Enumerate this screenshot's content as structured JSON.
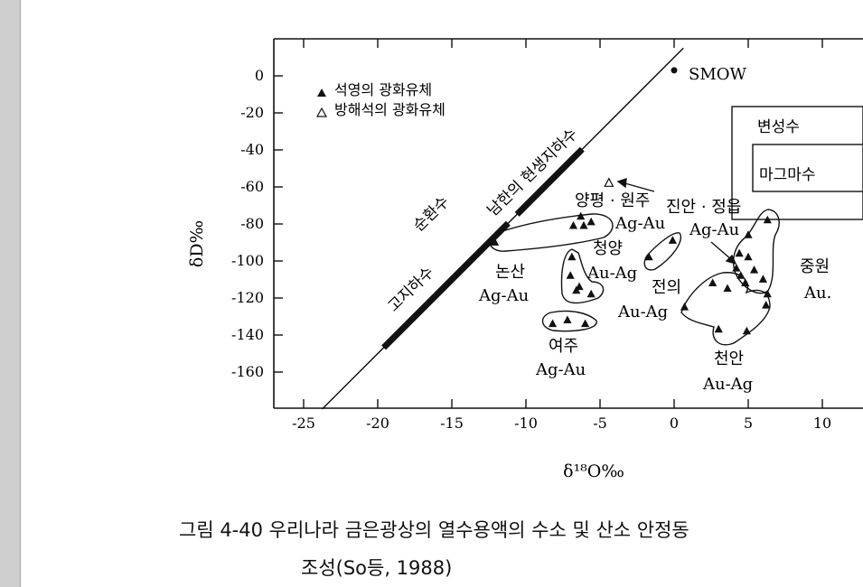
{
  "chart_data": {
    "type": "scatter",
    "xlabel": "δ¹⁸O‰",
    "ylabel": "δD‰",
    "xlim": [
      -27,
      13
    ],
    "ylim": [
      -180,
      20
    ],
    "x_ticks": [
      "-25",
      "-20",
      "-15",
      "-10",
      "-5",
      "0",
      "5",
      "10"
    ],
    "y_ticks": [
      "0",
      "-20",
      "-40",
      "-60",
      "-80",
      "-100",
      "-120",
      "-140",
      "-160"
    ],
    "legend": [
      {
        "symbol": "filled-triangle",
        "label": "석영의 광화유체"
      },
      {
        "symbol": "open-triangle",
        "label": "방해석의 광화유체"
      }
    ],
    "smow": {
      "label": "SMOW",
      "x": 0,
      "y": 3
    },
    "meteoric_line": {
      "slope": 8,
      "intercept": 10
    },
    "line_labels": [
      "순환수",
      "고지하수",
      "남한의 현생지하수"
    ],
    "fields": [
      {
        "label": "변성수"
      },
      {
        "label": "마그마수"
      }
    ],
    "groups": [
      {
        "name": "논산",
        "sub": "Ag-Au",
        "points": [
          [
            -12.1,
            -90
          ]
        ]
      },
      {
        "name": "양평 · 원주",
        "sub": "Ag-Au",
        "points": [
          [
            -6.8,
            -81
          ],
          [
            -6.1,
            -81
          ],
          [
            -5.6,
            -79
          ],
          [
            -6.3,
            -76
          ]
        ]
      },
      {
        "name": "청양",
        "sub": "Au-Ag",
        "points": [
          [
            -6.9,
            -98
          ],
          [
            -7.0,
            -108
          ],
          [
            -6.6,
            -116
          ],
          [
            -5.6,
            -118
          ],
          [
            -6.4,
            -114
          ]
        ]
      },
      {
        "name": "여주",
        "sub": "Ag-Au",
        "points": [
          [
            -8.2,
            -134
          ],
          [
            -7.2,
            -132
          ],
          [
            -6.0,
            -134
          ]
        ]
      },
      {
        "name": "전의",
        "sub": "Au-Ag",
        "points": [
          [
            -1.7,
            -98
          ],
          [
            -0.1,
            -89
          ]
        ]
      },
      {
        "name": "진안 · 정읍",
        "sub": "Ag-Au",
        "points": [
          [
            6.3,
            -78
          ],
          [
            5.0,
            -86
          ],
          [
            4.4,
            -96
          ],
          [
            5.0,
            -98
          ],
          [
            4.2,
            -104
          ],
          [
            4.5,
            -108
          ],
          [
            5.4,
            -105
          ],
          [
            6.0,
            -110
          ],
          [
            4.8,
            -112
          ]
        ]
      },
      {
        "name": "천안",
        "sub": "Au-Ag",
        "points": [
          [
            0.7,
            -125
          ],
          [
            2.6,
            -112
          ],
          [
            3.6,
            -115
          ],
          [
            6.3,
            -118
          ],
          [
            6.2,
            -124
          ],
          [
            3.0,
            -137
          ],
          [
            4.9,
            -138
          ]
        ]
      },
      {
        "name": "중원",
        "sub": "Au.",
        "points": []
      }
    ],
    "open_points": [
      [
        -4.4,
        -58
      ]
    ]
  },
  "caption": {
    "line1": "그림 4-40  우리나라 금은광상의 열수용액의 수소 및 산소 안정동",
    "line2": "조성(So등, 1988)"
  }
}
